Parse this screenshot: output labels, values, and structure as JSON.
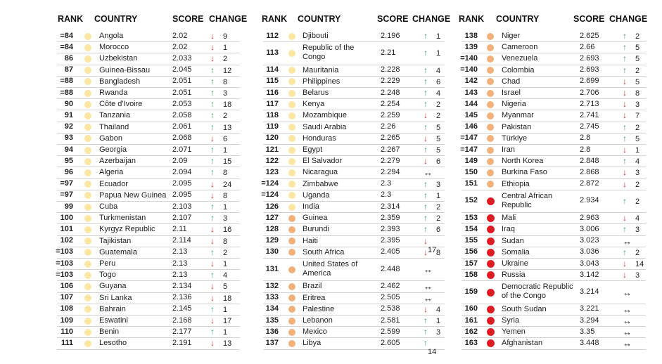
{
  "headers": {
    "rank": "RANK",
    "country": "COUNTRY",
    "score": "SCORE",
    "change": "CHANGE"
  },
  "colors": {
    "yellow": "#fbe6a2",
    "orange": "#f2b07a",
    "red": "#e01b23",
    "up": "#2e9e58",
    "down": "#d8262c"
  },
  "columns": [
    {
      "rows": [
        {
          "rank": "=84",
          "country": "Angola",
          "score": "2.02",
          "dir": "down",
          "change": "9",
          "level": "yellow"
        },
        {
          "rank": "=84",
          "country": "Morocco",
          "score": "2.02",
          "dir": "down",
          "change": "1",
          "level": "yellow"
        },
        {
          "rank": "86",
          "country": "Uzbekistan",
          "score": "2.033",
          "dir": "down",
          "change": "2",
          "level": "yellow"
        },
        {
          "rank": "87",
          "country": "Guinea-Bissau",
          "score": "2.045",
          "dir": "up",
          "change": "12",
          "level": "yellow"
        },
        {
          "rank": "=88",
          "country": "Bangladesh",
          "score": "2.051",
          "dir": "up",
          "change": "8",
          "level": "yellow"
        },
        {
          "rank": "=88",
          "country": "Rwanda",
          "score": "2.051",
          "dir": "up",
          "change": "3",
          "level": "yellow"
        },
        {
          "rank": "90",
          "country": "Côte d'Ivoire",
          "score": "2.053",
          "dir": "up",
          "change": "18",
          "level": "yellow"
        },
        {
          "rank": "91",
          "country": "Tanzania",
          "score": "2.058",
          "dir": "up",
          "change": "2",
          "level": "yellow"
        },
        {
          "rank": "92",
          "country": "Thailand",
          "score": "2.061",
          "dir": "up",
          "change": "13",
          "level": "yellow"
        },
        {
          "rank": "93",
          "country": "Gabon",
          "score": "2.068",
          "dir": "down",
          "change": "6",
          "level": "yellow"
        },
        {
          "rank": "94",
          "country": "Georgia",
          "score": "2.071",
          "dir": "up",
          "change": "1",
          "level": "yellow"
        },
        {
          "rank": "95",
          "country": "Azerbaijan",
          "score": "2.09",
          "dir": "up",
          "change": "15",
          "level": "yellow"
        },
        {
          "rank": "96",
          "country": "Algeria",
          "score": "2.094",
          "dir": "up",
          "change": "8",
          "level": "yellow"
        },
        {
          "rank": "=97",
          "country": "Ecuador",
          "score": "2.095",
          "dir": "down",
          "change": "24",
          "level": "yellow"
        },
        {
          "rank": "=97",
          "country": "Papua New Guinea",
          "score": "2.095",
          "dir": "down",
          "change": "8",
          "level": "yellow"
        },
        {
          "rank": "99",
          "country": "Cuba",
          "score": "2.103",
          "dir": "up",
          "change": "1",
          "level": "yellow"
        },
        {
          "rank": "100",
          "country": "Turkmenistan",
          "score": "2.107",
          "dir": "up",
          "change": "3",
          "level": "yellow"
        },
        {
          "rank": "101",
          "country": "Kyrgyz Republic",
          "score": "2.11",
          "dir": "down",
          "change": "16",
          "level": "yellow"
        },
        {
          "rank": "102",
          "country": "Tajikistan",
          "score": "2.114",
          "dir": "down",
          "change": "8",
          "level": "yellow"
        },
        {
          "rank": "=103",
          "country": "Guatemala",
          "score": "2.13",
          "dir": "up",
          "change": "2",
          "level": "yellow"
        },
        {
          "rank": "=103",
          "country": "Peru",
          "score": "2.13",
          "dir": "down",
          "change": "1",
          "level": "yellow"
        },
        {
          "rank": "=103",
          "country": "Togo",
          "score": "2.13",
          "dir": "up",
          "change": "4",
          "level": "yellow"
        },
        {
          "rank": "106",
          "country": "Guyana",
          "score": "2.134",
          "dir": "down",
          "change": "5",
          "level": "yellow"
        },
        {
          "rank": "107",
          "country": "Sri Lanka",
          "score": "2.136",
          "dir": "down",
          "change": "18",
          "level": "yellow"
        },
        {
          "rank": "108",
          "country": "Bahrain",
          "score": "2.145",
          "dir": "up",
          "change": "1",
          "level": "yellow"
        },
        {
          "rank": "109",
          "country": "Eswatini",
          "score": "2.168",
          "dir": "down",
          "change": "17",
          "level": "yellow"
        },
        {
          "rank": "110",
          "country": "Benin",
          "score": "2.177",
          "dir": "up",
          "change": "1",
          "level": "yellow"
        },
        {
          "rank": "111",
          "country": "Lesotho",
          "score": "2.191",
          "dir": "down",
          "change": "13",
          "level": "yellow"
        }
      ]
    },
    {
      "rows": [
        {
          "rank": "112",
          "country": "Djibouti",
          "score": "2.196",
          "dir": "up",
          "change": "1",
          "level": "yellow"
        },
        {
          "rank": "113",
          "country": "Republic of the Congo",
          "score": "2.21",
          "dir": "up",
          "change": "1",
          "level": "yellow",
          "tall": true
        },
        {
          "rank": "114",
          "country": "Mauritania",
          "score": "2.228",
          "dir": "up",
          "change": "4",
          "level": "yellow"
        },
        {
          "rank": "115",
          "country": "Philippines",
          "score": "2.229",
          "dir": "up",
          "change": "6",
          "level": "yellow"
        },
        {
          "rank": "116",
          "country": "Belarus",
          "score": "2.248",
          "dir": "up",
          "change": "4",
          "level": "yellow"
        },
        {
          "rank": "117",
          "country": "Kenya",
          "score": "2.254",
          "dir": "up",
          "change": "2",
          "level": "yellow"
        },
        {
          "rank": "118",
          "country": "Mozambique",
          "score": "2.259",
          "dir": "down",
          "change": "2",
          "level": "yellow"
        },
        {
          "rank": "119",
          "country": "Saudi Arabia",
          "score": "2.26",
          "dir": "up",
          "change": "5",
          "level": "yellow"
        },
        {
          "rank": "120",
          "country": "Honduras",
          "score": "2.265",
          "dir": "down",
          "change": "5",
          "level": "yellow"
        },
        {
          "rank": "121",
          "country": "Egypt",
          "score": "2.267",
          "dir": "up",
          "change": "5",
          "level": "yellow"
        },
        {
          "rank": "122",
          "country": "El Salvador",
          "score": "2.279",
          "dir": "down",
          "change": "6",
          "level": "yellow"
        },
        {
          "rank": "123",
          "country": "Nicaragua",
          "score": "2.294",
          "dir": "eq",
          "change": "",
          "level": "yellow"
        },
        {
          "rank": "=124",
          "country": "Zimbabwe",
          "score": "2.3",
          "dir": "up",
          "change": "3",
          "level": "yellow"
        },
        {
          "rank": "=124",
          "country": "Uganda",
          "score": "2.3",
          "dir": "up",
          "change": "1",
          "level": "yellow"
        },
        {
          "rank": "126",
          "country": "India",
          "score": "2.314",
          "dir": "up",
          "change": "2",
          "level": "yellow"
        },
        {
          "rank": "127",
          "country": "Guinea",
          "score": "2.359",
          "dir": "up",
          "change": "2",
          "level": "orange"
        },
        {
          "rank": "128",
          "country": "Burundi",
          "score": "2.393",
          "dir": "up",
          "change": "6",
          "level": "orange"
        },
        {
          "rank": "129",
          "country": "Haiti",
          "score": "2.395",
          "dir": "down",
          "change": "17",
          "level": "orange"
        },
        {
          "rank": "130",
          "country": "South Africa",
          "score": "2.405",
          "dir": "down",
          "change": "8",
          "level": "orange"
        },
        {
          "rank": "131",
          "country": "United States of America",
          "score": "2.448",
          "dir": "eq",
          "change": "",
          "level": "orange",
          "tall": true
        },
        {
          "rank": "132",
          "country": "Brazil",
          "score": "2.462",
          "dir": "eq",
          "change": "",
          "level": "orange"
        },
        {
          "rank": "133",
          "country": "Eritrea",
          "score": "2.505",
          "dir": "eq",
          "change": "",
          "level": "orange"
        },
        {
          "rank": "134",
          "country": "Palestine",
          "score": "2.538",
          "dir": "down",
          "change": "4",
          "level": "orange"
        },
        {
          "rank": "135",
          "country": "Lebanon",
          "score": "2.581",
          "dir": "up",
          "change": "1",
          "level": "orange"
        },
        {
          "rank": "136",
          "country": "Mexico",
          "score": "2.599",
          "dir": "up",
          "change": "3",
          "level": "orange"
        },
        {
          "rank": "137",
          "country": "Libya",
          "score": "2.605",
          "dir": "up",
          "change": "14",
          "level": "orange"
        }
      ]
    },
    {
      "rows": [
        {
          "rank": "138",
          "country": "Niger",
          "score": "2.625",
          "dir": "up",
          "change": "2",
          "level": "orange"
        },
        {
          "rank": "139",
          "country": "Cameroon",
          "score": "2.66",
          "dir": "up",
          "change": "5",
          "level": "orange"
        },
        {
          "rank": "=140",
          "country": "Venezuela",
          "score": "2.693",
          "dir": "up",
          "change": "5",
          "level": "orange"
        },
        {
          "rank": "=140",
          "country": "Colombia",
          "score": "2.693",
          "dir": "up",
          "change": "2",
          "level": "orange"
        },
        {
          "rank": "142",
          "country": "Chad",
          "score": "2.699",
          "dir": "down",
          "change": "5",
          "level": "orange"
        },
        {
          "rank": "143",
          "country": "Israel",
          "score": "2.706",
          "dir": "down",
          "change": "8",
          "level": "orange"
        },
        {
          "rank": "144",
          "country": "Nigeria",
          "score": "2.713",
          "dir": "down",
          "change": "3",
          "level": "orange"
        },
        {
          "rank": "145",
          "country": "Myanmar",
          "score": "2.741",
          "dir": "down",
          "change": "7",
          "level": "orange"
        },
        {
          "rank": "146",
          "country": "Pakistan",
          "score": "2.745",
          "dir": "up",
          "change": "2",
          "level": "orange"
        },
        {
          "rank": "=147",
          "country": "Türkiye",
          "score": "2.8",
          "dir": "up",
          "change": "5",
          "level": "orange"
        },
        {
          "rank": "=147",
          "country": "Iran",
          "score": "2.8",
          "dir": "down",
          "change": "1",
          "level": "orange"
        },
        {
          "rank": "149",
          "country": "North Korea",
          "score": "2.848",
          "dir": "up",
          "change": "4",
          "level": "orange"
        },
        {
          "rank": "150",
          "country": "Burkina Faso",
          "score": "2.868",
          "dir": "down",
          "change": "3",
          "level": "orange"
        },
        {
          "rank": "151",
          "country": "Ethiopia",
          "score": "2.872",
          "dir": "down",
          "change": "2",
          "level": "orange"
        },
        {
          "rank": "152",
          "country": "Central African Republic",
          "score": "2.934",
          "dir": "up",
          "change": "2",
          "level": "red",
          "tall": true
        },
        {
          "rank": "153",
          "country": "Mali",
          "score": "2.963",
          "dir": "down",
          "change": "4",
          "level": "red"
        },
        {
          "rank": "154",
          "country": "Iraq",
          "score": "3.006",
          "dir": "up",
          "change": "3",
          "level": "red"
        },
        {
          "rank": "155",
          "country": "Sudan",
          "score": "3.023",
          "dir": "eq",
          "change": "",
          "level": "red"
        },
        {
          "rank": "156",
          "country": "Somalia",
          "score": "3.036",
          "dir": "up",
          "change": "2",
          "level": "red"
        },
        {
          "rank": "157",
          "country": "Ukraine",
          "score": "3.043",
          "dir": "down",
          "change": "14",
          "level": "red"
        },
        {
          "rank": "158",
          "country": "Russia",
          "score": "3.142",
          "dir": "down",
          "change": "3",
          "level": "red"
        },
        {
          "rank": "159",
          "country": "Democratic Republic of the Congo",
          "score": "3.214",
          "dir": "eq",
          "change": "",
          "level": "red",
          "tall": true
        },
        {
          "rank": "160",
          "country": "South Sudan",
          "score": "3.221",
          "dir": "eq",
          "change": "",
          "level": "red"
        },
        {
          "rank": "161",
          "country": "Syria",
          "score": "3.294",
          "dir": "eq",
          "change": "",
          "level": "red"
        },
        {
          "rank": "162",
          "country": "Yemen",
          "score": "3.35",
          "dir": "eq",
          "change": "",
          "level": "red"
        },
        {
          "rank": "163",
          "country": "Afghanistan",
          "score": "3.448",
          "dir": "eq",
          "change": "",
          "level": "red"
        }
      ]
    }
  ]
}
